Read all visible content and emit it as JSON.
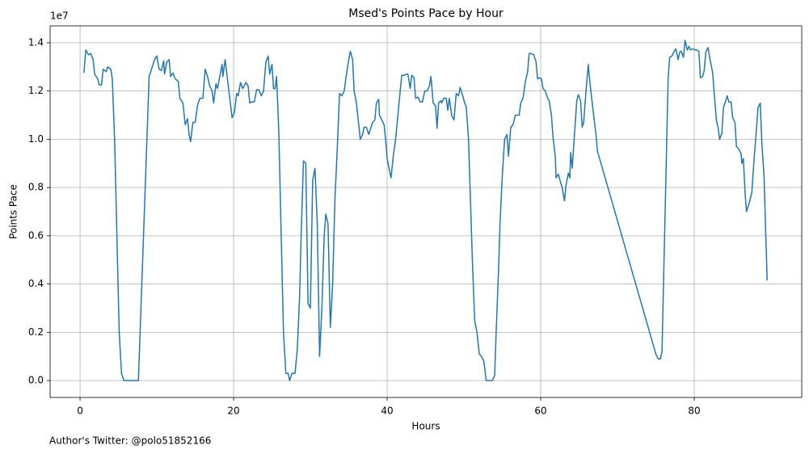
{
  "chart_data": {
    "type": "line",
    "title": "Msed's Points Pace by Hour",
    "xlabel": "Hours",
    "ylabel": "Points Pace",
    "offset_label": "1e7",
    "footnote": "Author's Twitter: @polo51852166",
    "color": "#1f77b4",
    "grid": true,
    "xlim": [
      -3.9,
      94
    ],
    "ylim": [
      -0.07,
      1.47
    ],
    "xticks": [
      0,
      20,
      40,
      60,
      80
    ],
    "yticks": [
      {
        "value": 0,
        "label": "0.0"
      },
      0.2,
      0.4,
      0.6,
      0.8,
      {
        "value": 1,
        "label": "1.0"
      },
      1.2,
      1.4
    ],
    "x": [
      0.5,
      0.75,
      1.1,
      1.4,
      1.7,
      1.9,
      2.3,
      2.5,
      2.8,
      3.0,
      3.4,
      3.6,
      4.0,
      4.2,
      4.5,
      4.8,
      5.1,
      5.4,
      5.7,
      6.6,
      7.1,
      7.6,
      8.1,
      8.6,
      9.0,
      9.4,
      9.7,
      10.0,
      10.3,
      10.6,
      10.9,
      11.0,
      11.3,
      11.6,
      11.8,
      12.1,
      12.4,
      12.8,
      13.0,
      13.4,
      13.7,
      14.0,
      14.2,
      14.4,
      14.7,
      15.0,
      15.3,
      15.6,
      16.0,
      16.3,
      16.6,
      16.9,
      17.2,
      17.4,
      17.7,
      17.9,
      18.2,
      18.5,
      18.6,
      18.9,
      19.2,
      19.5,
      19.8,
      20.1,
      20.4,
      20.6,
      20.9,
      21.2,
      21.6,
      21.9,
      22.1,
      22.4,
      22.7,
      23.0,
      23.3,
      23.6,
      23.9,
      24.2,
      24.5,
      24.7,
      25.0,
      25.2,
      25.4,
      25.6,
      25.9,
      26.2,
      26.5,
      26.8,
      27.1,
      27.3,
      27.6,
      28.0,
      28.3,
      28.6,
      28.8,
      29.1,
      29.4,
      29.7,
      30.0,
      30.3,
      30.6,
      30.9,
      31.2,
      31.5,
      31.8,
      32.0,
      32.3,
      32.6,
      32.9,
      33.2,
      33.5,
      33.8,
      34.1,
      34.4,
      34.7,
      35.0,
      35.2,
      35.5,
      35.7,
      36.0,
      36.3,
      36.5,
      36.8,
      37.0,
      37.3,
      37.6,
      37.9,
      38.1,
      38.4,
      38.6,
      38.9,
      39.0,
      39.3,
      39.6,
      39.8,
      40.0,
      40.3,
      40.5,
      40.8,
      41.1,
      41.4,
      41.7,
      41.9,
      42.2,
      42.5,
      42.7,
      43.0,
      43.2,
      43.5,
      43.7,
      44.0,
      44.3,
      44.6,
      44.9,
      45.2,
      45.5,
      45.7,
      46.0,
      46.3,
      46.5,
      46.7,
      47.0,
      47.1,
      47.4,
      47.7,
      47.9,
      48.1,
      48.4,
      48.7,
      49.0,
      49.3,
      49.5,
      49.8,
      50.1,
      50.3,
      50.6,
      50.8,
      51.1,
      51.4,
      51.7,
      52.0,
      52.3,
      52.6,
      52.9,
      53.3,
      53.7,
      54.0,
      54.2,
      54.5,
      54.7,
      55.0,
      55.3,
      55.6,
      55.8,
      56.1,
      56.4,
      56.7,
      57.2,
      57.4,
      57.7,
      58.0,
      58.3,
      58.5,
      58.8,
      59.1,
      59.4,
      59.6,
      59.8,
      60.1,
      60.3,
      60.6,
      60.9,
      61.1,
      61.4,
      61.6,
      61.9,
      62.0,
      62.3,
      62.6,
      62.8,
      63.1,
      63.3,
      63.6,
      63.8,
      63.9,
      64.1,
      64.4,
      64.7,
      64.9,
      65.2,
      65.4,
      65.6,
      65.9,
      66.2,
      66.3,
      66.6,
      66.9,
      67.2,
      67.4,
      75.0,
      75.3,
      75.6,
      75.8,
      76.4,
      76.6,
      76.8,
      77.1,
      77.4,
      77.6,
      77.9,
      78.1,
      78.3,
      78.6,
      78.8,
      79.1,
      79.3,
      79.5,
      79.8,
      80.1,
      80.3,
      80.6,
      80.8,
      81.1,
      81.3,
      81.5,
      81.8,
      82.0,
      82.4,
      82.6,
      82.9,
      83.1,
      83.3,
      83.6,
      83.8,
      84.1,
      84.3,
      84.5,
      84.8,
      85.0,
      85.3,
      85.5,
      85.8,
      86.1,
      86.2,
      86.4,
      86.6,
      86.8,
      87.2,
      87.5,
      87.8,
      88.1,
      88.3,
      88.6,
      88.8,
      89.1,
      89.3,
      89.5
    ],
    "values": [
      1.275,
      1.37,
      1.35,
      1.355,
      1.33,
      1.27,
      1.25,
      1.225,
      1.225,
      1.29,
      1.28,
      1.3,
      1.29,
      1.25,
      1.0,
      0.6,
      0.2,
      0.03,
      0,
      0,
      0,
      0,
      0.45,
      0.9,
      1.26,
      1.3,
      1.33,
      1.345,
      1.29,
      1.285,
      1.325,
      1.27,
      1.32,
      1.33,
      1.26,
      1.275,
      1.25,
      1.24,
      1.17,
      1.15,
      1.06,
      1.085,
      1.02,
      0.99,
      1.07,
      1.07,
      1.14,
      1.17,
      1.17,
      1.29,
      1.26,
      1.22,
      1.2,
      1.15,
      1.23,
      1.21,
      1.26,
      1.31,
      1.26,
      1.33,
      1.25,
      1.17,
      1.09,
      1.11,
      1.19,
      1.18,
      1.235,
      1.21,
      1.235,
      1.22,
      1.15,
      1.155,
      1.155,
      1.205,
      1.205,
      1.18,
      1.2,
      1.32,
      1.345,
      1.27,
      1.31,
      1.21,
      1.21,
      1.26,
      1.02,
      0.6,
      0.2,
      0.03,
      0.03,
      0,
      0.03,
      0.03,
      0.13,
      0.35,
      0.6,
      0.91,
      0.9,
      0.32,
      0.3,
      0.83,
      0.88,
      0.65,
      0.1,
      0.3,
      0.6,
      0.69,
      0.65,
      0.22,
      0.4,
      0.75,
      0.96,
      1.19,
      1.18,
      1.2,
      1.27,
      1.33,
      1.365,
      1.33,
      1.2,
      1.15,
      1.06,
      1.0,
      1.02,
      1.05,
      1.05,
      1.02,
      1.05,
      1.07,
      1.08,
      1.15,
      1.165,
      1.1,
      1.08,
      1.06,
      1.0,
      0.92,
      0.87,
      0.84,
      0.93,
      1.0,
      1.1,
      1.2,
      1.265,
      1.265,
      1.27,
      1.27,
      1.21,
      1.265,
      1.255,
      1.17,
      1.175,
      1.155,
      1.155,
      1.2,
      1.2,
      1.22,
      1.26,
      1.15,
      1.14,
      1.045,
      1.15,
      1.16,
      1.15,
      1.17,
      1.17,
      1.12,
      1.17,
      1.1,
      1.08,
      1.19,
      1.18,
      1.215,
      1.185,
      1.15,
      1.135,
      1.0,
      0.8,
      0.5,
      0.25,
      0.2,
      0.11,
      0.1,
      0.08,
      0,
      0,
      0,
      0.02,
      0.2,
      0.45,
      0.65,
      0.85,
      1.0,
      1.02,
      0.93,
      1.05,
      1.06,
      1.1,
      1.1,
      1.15,
      1.17,
      1.24,
      1.28,
      1.355,
      1.355,
      1.35,
      1.32,
      1.25,
      1.255,
      1.25,
      1.21,
      1.2,
      1.17,
      1.16,
      1.1,
      1.01,
      0.93,
      0.84,
      0.855,
      0.82,
      0.8,
      0.745,
      0.81,
      0.86,
      0.84,
      0.945,
      0.88,
      1.02,
      1.16,
      1.185,
      1.16,
      1.05,
      1.07,
      1.2,
      1.31,
      1.27,
      1.18,
      1.1,
      1.02,
      0.95,
      0.11,
      0.09,
      0.09,
      0.12,
      0.97,
      1.25,
      1.34,
      1.345,
      1.365,
      1.375,
      1.33,
      1.36,
      1.365,
      1.34,
      1.41,
      1.37,
      1.385,
      1.37,
      1.375,
      1.37,
      1.37,
      1.365,
      1.255,
      1.26,
      1.285,
      1.36,
      1.38,
      1.34,
      1.275,
      1.19,
      1.075,
      1.05,
      1.0,
      1.025,
      1.13,
      1.16,
      1.18,
      1.155,
      1.155,
      1.09,
      1.07,
      0.97,
      0.96,
      0.94,
      0.9,
      0.92,
      0.79,
      0.7,
      0.74,
      0.78,
      0.92,
      1.04,
      1.13,
      1.15,
      0.99,
      0.84,
      0.62,
      0.415
    ]
  }
}
